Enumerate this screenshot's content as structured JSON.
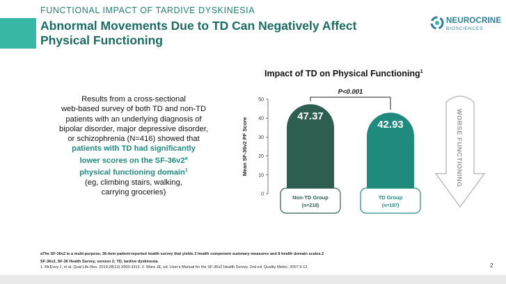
{
  "header": {
    "kicker": "FUNCTIONAL IMPACT OF TARDIVE DYSKINESIA",
    "title_line1": "Abnormal Movements Due to TD Can Negatively Affect",
    "title_line2": "Physical Functioning",
    "accent_color": "#38b6a6",
    "title_color": "#1b6b63"
  },
  "logo": {
    "word": "NEUROCRINE",
    "sub": "BIOSCIENCES",
    "icon": "neurocrine-logo-mark",
    "color": "#2b7e9c"
  },
  "body_text": {
    "line1": "Results from a cross-sectional",
    "line2": "web-based survey of both TD and non-TD",
    "line3": "patients with an underlying diagnosis of",
    "line4": "bipolar disorder, major depressive disorder,",
    "line5": "or schizophrenia (N=416) showed that",
    "hl1": "patients with TD had significantly",
    "hl2a": "lower scores on the SF-36v2",
    "hl2_sup": "a",
    "hl3": "physical functioning domain",
    "hl3_sup": "1",
    "line6": "(eg, climbing stairs, walking,",
    "line7": "carrying groceries)"
  },
  "chart_data": {
    "type": "bar",
    "title": "Impact of TD on Physical Functioning",
    "title_sup": "1",
    "ylabel": "Mean SF-36v2 PF Score",
    "ylim": [
      0,
      50
    ],
    "yticks": [
      0,
      10,
      20,
      30,
      40,
      50
    ],
    "categories": [
      "Non-TD Group",
      "TD Group"
    ],
    "category_sublabels": [
      "(n=218)",
      "(n=197)"
    ],
    "values": [
      47.37,
      42.93
    ],
    "value_labels": [
      "47.37",
      "42.93"
    ],
    "bar_colors": [
      "#2e5e52",
      "#1f8a7d"
    ],
    "significance": "P<0.001",
    "arrow_label": "WORSE FUNCTIONING",
    "grid": false
  },
  "footnotes": {
    "note_a": "aThe SF-36v2 is a multi-purpose, 36-item patient-reported health survey that yields 2 health component summary measures and 8 health domain scales.2",
    "abbrev": "SF-36v2, SF-36 Health Survey, version 2; TD, tardive dyskinesia.",
    "refs": "1. McEvoy J, et al. Qual Life Res. 2019;28(12):3303-3312. 2. Ware JE, ed. User's Manual for the SF-36v2 Health Survey. 2nd ed. Quality Metric; 2007:3-12."
  },
  "page_number": "2"
}
